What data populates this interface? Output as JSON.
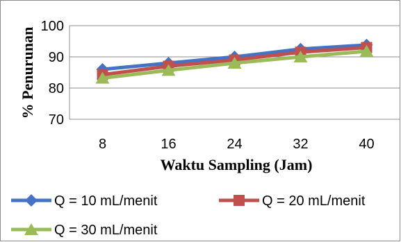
{
  "chart_data": {
    "type": "line",
    "title": "",
    "xlabel": "Waktu Sampling (Jam)",
    "ylabel": "% Penurunan",
    "categories": [
      "8",
      "16",
      "24",
      "32",
      "40"
    ],
    "yticks": [
      "70",
      "80",
      "90",
      "100"
    ],
    "ylim": [
      70,
      100
    ],
    "grid": true,
    "legend_position": "bottom",
    "series": [
      {
        "name": "Q = 10 mL/menit",
        "values": [
          86,
          88,
          90,
          92.5,
          93.8
        ],
        "color": "#4472C4",
        "marker": "diamond"
      },
      {
        "name": "Q = 20 mL/menit",
        "values": [
          84.3,
          87,
          89,
          91.5,
          93
        ],
        "color": "#C0504D",
        "marker": "square"
      },
      {
        "name": "Q = 30 mL/menit",
        "values": [
          83.2,
          85.7,
          88,
          90,
          91.8
        ],
        "color": "#9BBB59",
        "marker": "triangle"
      }
    ]
  }
}
